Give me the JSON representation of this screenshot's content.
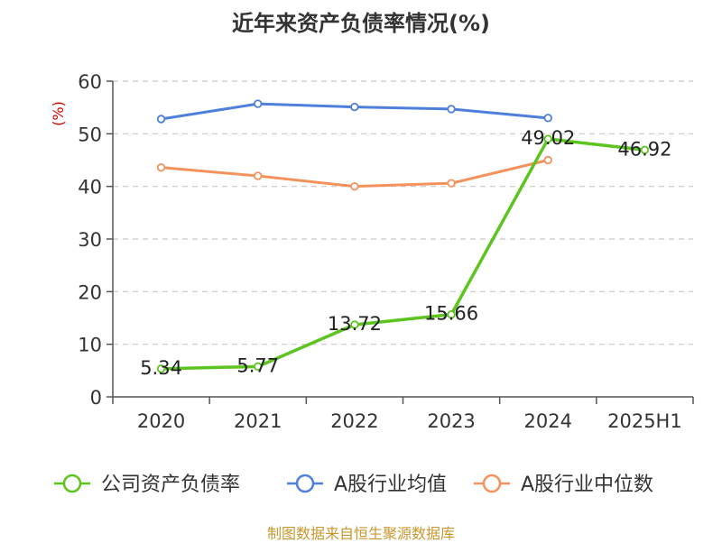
{
  "chart_data": {
    "type": "line",
    "title": "近年来资产负债率情况(%)",
    "ylabel": "(%)",
    "categories": [
      "2020",
      "2021",
      "2022",
      "2023",
      "2024",
      "2025H1"
    ],
    "ylim": [
      0,
      60
    ],
    "yticks": [
      0,
      10,
      20,
      30,
      40,
      50,
      60
    ],
    "grid": true,
    "legend_position": "bottom",
    "series": [
      {
        "name": "公司资产负债率",
        "color": "#5cc41f",
        "values": [
          5.34,
          5.77,
          13.72,
          15.66,
          49.02,
          46.92
        ],
        "labels": [
          "5.34",
          "5.77",
          "13.72",
          "15.66",
          "49.02",
          "46.92"
        ]
      },
      {
        "name": "A股行业均值",
        "color": "#4e7fdb",
        "values": [
          52.8,
          55.7,
          55.1,
          54.7,
          53.0,
          null
        ]
      },
      {
        "name": "A股行业中位数",
        "color": "#f4925e",
        "values": [
          43.6,
          42.0,
          40.0,
          40.6,
          45.0,
          null
        ]
      }
    ]
  },
  "source": "制图数据来自恒生聚源数据库"
}
